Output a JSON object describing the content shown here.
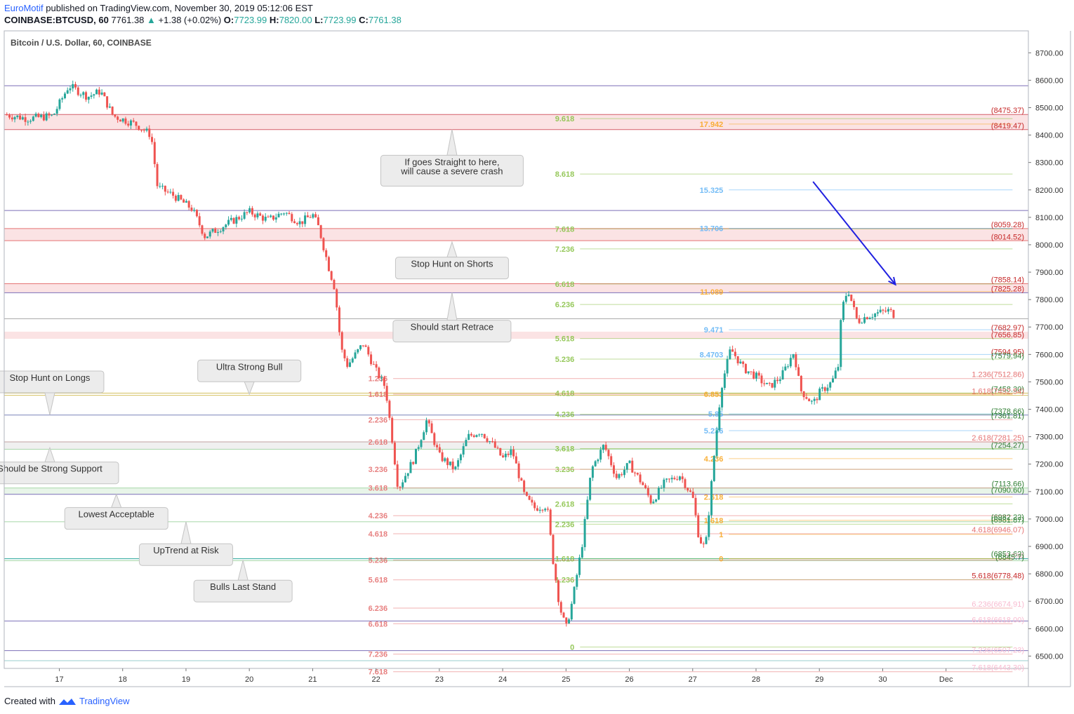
{
  "header": {
    "brand": "EuroMotif",
    "published": "published on TradingView.com, November 30, 2019 05:12:06 EST",
    "symbol": "COINBASE:BTCUSD, 60",
    "last": "7761.38",
    "change": "+1.38 (+0.02%)",
    "o_label": "O:",
    "o_value": "7723.99",
    "h_label": "H:",
    "h_value": "7820.00",
    "l_label": "L:",
    "l_value": "7723.99",
    "c_label": "C:",
    "c_value": "7761.38"
  },
  "footer": {
    "created": "Created with",
    "brand": "TradingView"
  },
  "colors": {
    "up": "#26a69a",
    "down": "#ef5350",
    "grid": "#ffffff",
    "axis_border": "#b2b5be",
    "arrow": "#2020e0"
  },
  "chart_data": {
    "type": "candlestick",
    "title": "Bitcoin / U.S. Dollar, 60, COINBASE",
    "ylim": [
      6455,
      8780
    ],
    "y_ticks": [
      6500,
      6600,
      6700,
      6800,
      6900,
      7000,
      7100,
      7200,
      7300,
      7400,
      7500,
      7600,
      7700,
      7800,
      7900,
      8000,
      8100,
      8200,
      8300,
      8400,
      8500,
      8600,
      8700
    ],
    "y_tick_labels": [
      "6500.00",
      "6600.00",
      "6700.00",
      "6800.00",
      "6900.00",
      "7000.00",
      "7100.00",
      "7200.00",
      "7300.00",
      "7400.00",
      "7500.00",
      "7600.00",
      "7700.00",
      "7800.00",
      "7900.00",
      "8000.00",
      "8100.00",
      "8200.00",
      "8300.00",
      "8400.00",
      "8500.00",
      "8600.00",
      "8700.00"
    ],
    "x_range": [
      16.13,
      32.3
    ],
    "x_ticks": [
      17,
      18,
      19,
      20,
      21,
      22,
      23,
      24,
      25,
      26,
      27,
      28,
      29,
      30,
      31
    ],
    "x_tick_labels": [
      "17",
      "18",
      "19",
      "20",
      "21",
      "22",
      "23",
      "24",
      "25",
      "26",
      "27",
      "28",
      "29",
      "30",
      "Dec"
    ],
    "price_path": [
      [
        16.13,
        8475
      ],
      [
        16.5,
        8460
      ],
      [
        16.9,
        8470
      ],
      [
        17.15,
        8580
      ],
      [
        17.45,
        8540
      ],
      [
        17.65,
        8560
      ],
      [
        17.85,
        8470
      ],
      [
        18.2,
        8440
      ],
      [
        18.45,
        8400
      ],
      [
        18.55,
        8210
      ],
      [
        18.8,
        8180
      ],
      [
        19.1,
        8130
      ],
      [
        19.3,
        8030
      ],
      [
        19.6,
        8070
      ],
      [
        20.0,
        8120
      ],
      [
        20.3,
        8090
      ],
      [
        20.55,
        8120
      ],
      [
        20.8,
        8080
      ],
      [
        21.0,
        8110
      ],
      [
        21.1,
        8060
      ],
      [
        21.25,
        7920
      ],
      [
        21.35,
        7840
      ],
      [
        21.45,
        7620
      ],
      [
        21.55,
        7560
      ],
      [
        21.8,
        7640
      ],
      [
        22.0,
        7540
      ],
      [
        22.15,
        7480
      ],
      [
        22.25,
        7300
      ],
      [
        22.35,
        7110
      ],
      [
        22.6,
        7220
      ],
      [
        22.8,
        7360
      ],
      [
        23.0,
        7230
      ],
      [
        23.25,
        7180
      ],
      [
        23.45,
        7300
      ],
      [
        23.65,
        7320
      ],
      [
        23.85,
        7270
      ],
      [
        24.0,
        7220
      ],
      [
        24.15,
        7250
      ],
      [
        24.35,
        7080
      ],
      [
        24.5,
        7040
      ],
      [
        24.7,
        7050
      ],
      [
        24.8,
        6840
      ],
      [
        24.9,
        6680
      ],
      [
        25.0,
        6600
      ],
      [
        25.1,
        6700
      ],
      [
        25.25,
        6900
      ],
      [
        25.4,
        7180
      ],
      [
        25.6,
        7270
      ],
      [
        25.8,
        7150
      ],
      [
        26.0,
        7200
      ],
      [
        26.2,
        7130
      ],
      [
        26.35,
        7060
      ],
      [
        26.55,
        7130
      ],
      [
        26.8,
        7160
      ],
      [
        27.0,
        7080
      ],
      [
        27.1,
        6930
      ],
      [
        27.2,
        6890
      ],
      [
        27.35,
        7260
      ],
      [
        27.45,
        7480
      ],
      [
        27.6,
        7620
      ],
      [
        27.8,
        7550
      ],
      [
        28.0,
        7520
      ],
      [
        28.2,
        7480
      ],
      [
        28.4,
        7520
      ],
      [
        28.6,
        7610
      ],
      [
        28.7,
        7470
      ],
      [
        28.9,
        7420
      ],
      [
        29.0,
        7460
      ],
      [
        29.2,
        7500
      ],
      [
        29.3,
        7560
      ],
      [
        29.35,
        7760
      ],
      [
        29.45,
        7840
      ],
      [
        29.6,
        7720
      ],
      [
        29.75,
        7740
      ],
      [
        29.9,
        7750
      ],
      [
        30.1,
        7760
      ],
      [
        30.2,
        7740
      ]
    ],
    "level_lines": [
      {
        "price": 8580,
        "color": "#7b6fb8"
      },
      {
        "price": 8475,
        "color": "#d45f6a"
      },
      {
        "price": 8420,
        "color": "#d45f6a"
      },
      {
        "price": 8125,
        "color": "#7b6fb8"
      },
      {
        "price": 8059,
        "color": "#e57373"
      },
      {
        "price": 8015,
        "color": "#e57373"
      },
      {
        "price": 7858,
        "color": "#e57373"
      },
      {
        "price": 7825,
        "color": "#7b6fb8"
      },
      {
        "price": 7730,
        "color": "#aaaaaa"
      },
      {
        "price": 7459,
        "color": "#d4c060"
      },
      {
        "price": 7451,
        "color": "#d4c060"
      },
      {
        "price": 7379,
        "color": "#7a84b8"
      },
      {
        "price": 7281,
        "color": "#c0a0a0"
      },
      {
        "price": 7254,
        "color": "#a5d6a7"
      },
      {
        "price": 7113,
        "color": "#a5d6a7"
      },
      {
        "price": 7090,
        "color": "#7b6fb8"
      },
      {
        "price": 6990,
        "color": "#a5d6a7"
      },
      {
        "price": 6855,
        "color": "#26a69a"
      },
      {
        "price": 6848,
        "color": "#a5d6a7"
      },
      {
        "price": 6628,
        "color": "#7b6fb8"
      },
      {
        "price": 6520,
        "color": "#7b6fb8"
      },
      {
        "price": 6483,
        "color": "#99cccc"
      }
    ],
    "zones": [
      {
        "from": 8419.47,
        "to": 8475.37,
        "color": "#fbe3e4"
      },
      {
        "from": 8014.52,
        "to": 8059.28,
        "color": "#fbe3e4"
      },
      {
        "from": 7825.28,
        "to": 7858.14,
        "color": "#fbe3e4"
      },
      {
        "from": 7656.85,
        "to": 7682.97,
        "color": "#fbe3e4"
      },
      {
        "from": 7254.27,
        "to": 7281.25,
        "color": "#f0f0f0"
      },
      {
        "from": 7090.6,
        "to": 7113.66,
        "color": "#e8f5e9"
      }
    ],
    "fib_sets": [
      {
        "color": "#8bc34a",
        "x_label": 24.8,
        "x_end": 32.05,
        "items": [
          {
            "label": "9.618",
            "price": 8460
          },
          {
            "label": "8.618",
            "price": 8258
          },
          {
            "label": "7.618",
            "price": 8058
          },
          {
            "label": "7.236",
            "price": 7985
          },
          {
            "label": "6.618",
            "price": 7857
          },
          {
            "label": "6.236",
            "price": 7782
          },
          {
            "label": "5.618",
            "price": 7658
          },
          {
            "label": "5.236",
            "price": 7583
          },
          {
            "label": "4.618",
            "price": 7459
          },
          {
            "label": "4.236",
            "price": 7382
          },
          {
            "label": "3.618",
            "price": 7257
          },
          {
            "label": "3.236",
            "price": 7181
          },
          {
            "label": "2.618",
            "price": 7055
          },
          {
            "label": "2.236",
            "price": 6981
          },
          {
            "label": "1.618",
            "price": 6855
          },
          {
            "label": "1.236",
            "price": 6779
          },
          {
            "label": "0",
            "price": 6533
          }
        ]
      },
      {
        "color": "#e57373",
        "x_label": 21.85,
        "x_end": 32.05,
        "items": [
          {
            "label": "1.236",
            "price": 7512
          },
          {
            "label": "1.618",
            "price": 7455
          },
          {
            "label": "2.236",
            "price": 7362
          },
          {
            "label": "2.618",
            "price": 7281
          },
          {
            "label": "3.236",
            "price": 7181
          },
          {
            "label": "3.618",
            "price": 7113
          },
          {
            "label": "4.236",
            "price": 7012
          },
          {
            "label": "4.618",
            "price": 6946
          },
          {
            "label": "5.236",
            "price": 6850
          },
          {
            "label": "5.618",
            "price": 6778
          },
          {
            "label": "6.236",
            "price": 6675
          },
          {
            "label": "6.618",
            "price": 6618
          },
          {
            "label": "7.236",
            "price": 6507
          },
          {
            "label": "7.618",
            "price": 6443
          }
        ]
      },
      {
        "color": "#f9a825",
        "x_label": 27.15,
        "x_end": 32.05,
        "items": [
          {
            "label": "17.942",
            "price": 8440
          },
          {
            "label": "11.089",
            "price": 7829
          },
          {
            "label": "6.853",
            "price": 7455
          },
          {
            "label": "4.236",
            "price": 7220
          },
          {
            "label": "2.618",
            "price": 7080
          },
          {
            "label": "1.618",
            "price": 6995
          },
          {
            "label": "1",
            "price": 6944
          },
          {
            "label": "0",
            "price": 6855
          }
        ]
      },
      {
        "color": "#64b5f6",
        "x_label": 27.15,
        "x_end": 32.05,
        "items": [
          {
            "label": "15.325",
            "price": 8200
          },
          {
            "label": "13.706",
            "price": 8060
          },
          {
            "label": "9.471",
            "price": 7690
          },
          {
            "label": "8.4703",
            "price": 7600
          },
          {
            "label": "5.85",
            "price": 7383
          },
          {
            "label": "5.236",
            "price": 7322
          }
        ]
      }
    ],
    "right_labels": [
      {
        "text": "(8475.37)",
        "price": 8475.37,
        "color": "#c62828"
      },
      {
        "text": "(8419.47)",
        "price": 8419.47,
        "color": "#c62828"
      },
      {
        "text": "(8059.28)",
        "price": 8059.28,
        "color": "#c62828"
      },
      {
        "text": "(8014.52)",
        "price": 8014.52,
        "color": "#c62828"
      },
      {
        "text": "(7858.14)",
        "price": 7858.14,
        "color": "#c62828"
      },
      {
        "text": "(7825.28)",
        "price": 7825.28,
        "color": "#c62828"
      },
      {
        "text": "(7682.97)",
        "price": 7682.97,
        "color": "#c62828"
      },
      {
        "text": "(7656.85)",
        "price": 7656.85,
        "color": "#c62828"
      },
      {
        "text": "(7594.95)",
        "price": 7594.95,
        "color": "#c62828"
      },
      {
        "text": "(7579.94)",
        "price": 7579.94,
        "color": "#2e7d32"
      },
      {
        "text": "1.236(7512.86)",
        "price": 7512.86,
        "color": "#e57373"
      },
      {
        "text": "(7458.30)",
        "price": 7458.3,
        "color": "#2e7d32"
      },
      {
        "text": "1.618(7452.54)",
        "price": 7451,
        "color": "#e57373"
      },
      {
        "text": "(7378.66)",
        "price": 7378.66,
        "color": "#2e7d32"
      },
      {
        "text": "(7361.81)",
        "price": 7361.81,
        "color": "#2e7d32"
      },
      {
        "text": "2.618(7281.25)",
        "price": 7281.25,
        "color": "#e57373"
      },
      {
        "text": "(7254.27)",
        "price": 7254.27,
        "color": "#2e7d32"
      },
      {
        "text": "(7113.66)",
        "price": 7113.66,
        "color": "#2e7d32"
      },
      {
        "text": "(7090.60)",
        "price": 7090.6,
        "color": "#2e7d32"
      },
      {
        "text": "(6982.22)",
        "price": 6992,
        "color": "#2e7d32"
      },
      {
        "text": "(6981.87)",
        "price": 6981.87,
        "color": "#2e7d32"
      },
      {
        "text": "4.618(6946.07)",
        "price": 6946.07,
        "color": "#e57373"
      },
      {
        "text": "(6853.62)",
        "price": 6858,
        "color": "#2e7d32"
      },
      {
        "text": "5.236",
        "price": 6850,
        "color": "#f8bbd0"
      },
      {
        "text": "(6845.7)",
        "price": 6845.7,
        "color": "#2e7d32"
      },
      {
        "text": "5.618(6778.48)",
        "price": 6778.48,
        "color": "#c62828"
      },
      {
        "text": "6.236(6674.91)",
        "price": 6674.91,
        "color": "#f8bbd0"
      },
      {
        "text": "6.618(6618.00)",
        "price": 6618,
        "color": "#f8bbd0"
      },
      {
        "text": "7.236(6507.23)",
        "price": 6507.23,
        "color": "#f8bbd0"
      },
      {
        "text": "7.618(6443.30)",
        "price": 6443.3,
        "color": "#f8bbd0"
      }
    ],
    "annotations": [
      {
        "text": "If goes Straight to here,\nwill cause a severe crash",
        "x": 23.2,
        "price": 8270,
        "pointer": "up",
        "tip_price": 8420
      },
      {
        "text": "Stop Hunt on Shorts",
        "x": 23.2,
        "price": 7915,
        "pointer": "up",
        "tip_price": 8010
      },
      {
        "text": "Should start Retrace",
        "x": 23.2,
        "price": 7685,
        "pointer": "up",
        "tip_price": 7825
      },
      {
        "text": "Ultra Strong Bull",
        "x": 20.0,
        "price": 7540,
        "pointer": "down",
        "tip_price": 7455
      },
      {
        "text": "Stop Hunt on Longs",
        "x": 16.85,
        "price": 7500,
        "pointer": "down",
        "tip_price": 7380
      },
      {
        "text": "Should be Strong Support",
        "x": 16.85,
        "price": 7168,
        "pointer": "up",
        "tip_price": 7260
      },
      {
        "text": "Lowest Acceptable",
        "x": 17.9,
        "price": 7002,
        "pointer": "up",
        "tip_price": 7090
      },
      {
        "text": "UpTrend at Risk",
        "x": 19.0,
        "price": 6870,
        "pointer": "up",
        "tip_price": 6990
      },
      {
        "text": "Bulls Last Stand",
        "x": 19.9,
        "price": 6737,
        "pointer": "up",
        "tip_price": 6850
      }
    ],
    "arrow": {
      "from": [
        28.9,
        8230
      ],
      "to": [
        30.2,
        7855
      ]
    }
  }
}
